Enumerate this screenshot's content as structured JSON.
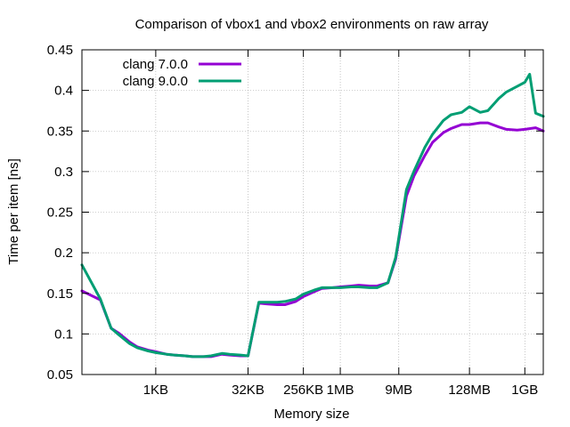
{
  "chart_data": {
    "type": "line",
    "title": "Comparison of vbox1 and vbox2 environments on raw array",
    "xlabel": "Memory size",
    "ylabel": "Time per item [ns]",
    "x_scale": "log2",
    "x_unit": "bytes",
    "xlim": [
      64,
      2147483648
    ],
    "ylim": [
      0.05,
      0.45
    ],
    "grid": true,
    "legend_position": "top-left",
    "x_ticks": [
      {
        "value": 1024,
        "label": "1KB"
      },
      {
        "value": 32768,
        "label": "32KB"
      },
      {
        "value": 262144,
        "label": "256KB"
      },
      {
        "value": 1048576,
        "label": "1MB"
      },
      {
        "value": 9437184,
        "label": "9MB"
      },
      {
        "value": 134217728,
        "label": "128MB"
      },
      {
        "value": 1073741824,
        "label": "1GB"
      }
    ],
    "y_ticks": [
      {
        "value": 0.05,
        "label": "0.05"
      },
      {
        "value": 0.1,
        "label": "0.1"
      },
      {
        "value": 0.15,
        "label": "0.15"
      },
      {
        "value": 0.2,
        "label": "0.2"
      },
      {
        "value": 0.25,
        "label": "0.25"
      },
      {
        "value": 0.3,
        "label": "0.3"
      },
      {
        "value": 0.35,
        "label": "0.35"
      },
      {
        "value": 0.4,
        "label": "0.4"
      },
      {
        "value": 0.45,
        "label": "0.45"
      }
    ],
    "series": [
      {
        "name": "clang 7.0.0",
        "color": "#9400d3",
        "points": [
          [
            64,
            0.153
          ],
          [
            128,
            0.142
          ],
          [
            192,
            0.107
          ],
          [
            256,
            0.101
          ],
          [
            384,
            0.09
          ],
          [
            512,
            0.084
          ],
          [
            768,
            0.08
          ],
          [
            1024,
            0.078
          ],
          [
            1536,
            0.075
          ],
          [
            2048,
            0.074
          ],
          [
            3072,
            0.073
          ],
          [
            4096,
            0.072
          ],
          [
            6144,
            0.072
          ],
          [
            8192,
            0.072
          ],
          [
            12288,
            0.075
          ],
          [
            16384,
            0.074
          ],
          [
            24576,
            0.073
          ],
          [
            32768,
            0.073
          ],
          [
            49152,
            0.138
          ],
          [
            65536,
            0.137
          ],
          [
            98304,
            0.136
          ],
          [
            131072,
            0.136
          ],
          [
            196608,
            0.14
          ],
          [
            262144,
            0.146
          ],
          [
            393216,
            0.152
          ],
          [
            524288,
            0.156
          ],
          [
            786432,
            0.157
          ],
          [
            1048576,
            0.158
          ],
          [
            1572864,
            0.159
          ],
          [
            2097152,
            0.16
          ],
          [
            3145728,
            0.159
          ],
          [
            4194304,
            0.159
          ],
          [
            6291456,
            0.163
          ],
          [
            8388608,
            0.192
          ],
          [
            12582912,
            0.27
          ],
          [
            16777216,
            0.295
          ],
          [
            25165824,
            0.32
          ],
          [
            33554432,
            0.336
          ],
          [
            50331648,
            0.348
          ],
          [
            67108864,
            0.353
          ],
          [
            100663296,
            0.358
          ],
          [
            134217728,
            0.358
          ],
          [
            201326592,
            0.36
          ],
          [
            268435456,
            0.36
          ],
          [
            402653184,
            0.355
          ],
          [
            536870912,
            0.352
          ],
          [
            805306368,
            0.351
          ],
          [
            1073741824,
            0.352
          ],
          [
            1610612736,
            0.354
          ],
          [
            2147483648,
            0.35
          ]
        ]
      },
      {
        "name": "clang 9.0.0",
        "color": "#009e73",
        "points": [
          [
            64,
            0.185
          ],
          [
            128,
            0.143
          ],
          [
            192,
            0.107
          ],
          [
            256,
            0.099
          ],
          [
            384,
            0.088
          ],
          [
            512,
            0.083
          ],
          [
            768,
            0.079
          ],
          [
            1024,
            0.077
          ],
          [
            1536,
            0.075
          ],
          [
            2048,
            0.074
          ],
          [
            3072,
            0.073
          ],
          [
            4096,
            0.072
          ],
          [
            6144,
            0.072
          ],
          [
            8192,
            0.073
          ],
          [
            12288,
            0.076
          ],
          [
            16384,
            0.075
          ],
          [
            24576,
            0.074
          ],
          [
            32768,
            0.073
          ],
          [
            49152,
            0.139
          ],
          [
            65536,
            0.139
          ],
          [
            98304,
            0.139
          ],
          [
            131072,
            0.14
          ],
          [
            196608,
            0.143
          ],
          [
            262144,
            0.149
          ],
          [
            393216,
            0.154
          ],
          [
            524288,
            0.157
          ],
          [
            786432,
            0.157
          ],
          [
            1048576,
            0.157
          ],
          [
            1572864,
            0.158
          ],
          [
            2097152,
            0.158
          ],
          [
            3145728,
            0.157
          ],
          [
            4194304,
            0.157
          ],
          [
            6291456,
            0.163
          ],
          [
            8388608,
            0.194
          ],
          [
            12582912,
            0.278
          ],
          [
            16777216,
            0.301
          ],
          [
            25165824,
            0.33
          ],
          [
            33554432,
            0.346
          ],
          [
            50331648,
            0.363
          ],
          [
            67108864,
            0.37
          ],
          [
            100663296,
            0.373
          ],
          [
            134217728,
            0.38
          ],
          [
            201326592,
            0.373
          ],
          [
            268435456,
            0.375
          ],
          [
            402653184,
            0.39
          ],
          [
            536870912,
            0.398
          ],
          [
            805306368,
            0.405
          ],
          [
            1073741824,
            0.41
          ],
          [
            1288490189,
            0.42
          ],
          [
            1610612736,
            0.372
          ],
          [
            2147483648,
            0.368
          ]
        ]
      }
    ]
  }
}
